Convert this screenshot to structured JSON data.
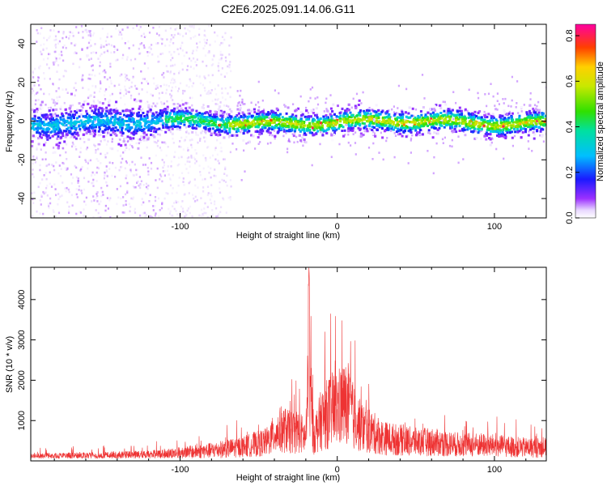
{
  "title": "C2E6.2025.091.14.06.G11",
  "colors": {
    "snr_line": "#ee3333",
    "axis": "#000000",
    "background": "#ffffff"
  },
  "chart_data": [
    {
      "type": "heatmap",
      "xlabel": "Height of straight line (km)",
      "ylabel": "Frequency (Hz)",
      "xlim": [
        -195,
        133
      ],
      "ylim": [
        -50,
        50
      ],
      "x_ticks": [
        -100,
        0,
        100
      ],
      "y_ticks": [
        -40,
        -20,
        0,
        20,
        40
      ],
      "colorbar": {
        "label": "Normalized spectral amplitude",
        "range": [
          0,
          0.85
        ],
        "ticks": [
          0.0,
          0.2,
          0.4,
          0.6,
          0.8
        ],
        "colormap": "rainbow (violet to red)"
      },
      "ridge": {
        "center_hz": 0,
        "description_values": "Narrow band of high amplitude centered near 0 Hz across heights; broad scattered low-amplitude noise at heights below about -70 km"
      }
    },
    {
      "type": "line",
      "xlabel": "Height of straight line (km)",
      "ylabel": "SNR (10 * v/v)",
      "xlim": [
        -195,
        133
      ],
      "ylim": [
        0,
        4800
      ],
      "x_ticks": [
        -100,
        0,
        100
      ],
      "y_ticks": [
        1000,
        2000,
        3000,
        4000
      ],
      "series": [
        {
          "x": [
            -195,
            -180,
            -160,
            -140,
            -120,
            -100,
            -80,
            -60,
            -45,
            -40,
            -35,
            -30,
            -25,
            -20,
            -18,
            -15,
            -10,
            -5,
            0,
            5,
            10,
            15,
            20,
            30,
            40,
            50,
            60,
            70,
            80,
            90,
            100,
            110,
            120,
            133
          ],
          "y": [
            250,
            250,
            260,
            280,
            330,
            420,
            550,
            750,
            1000,
            1400,
            1700,
            1500,
            1600,
            1200,
            4800,
            1300,
            2200,
            2600,
            2800,
            3000,
            2400,
            1800,
            1600,
            1200,
            1100,
            1000,
            1000,
            900,
            850,
            850,
            800,
            750,
            700,
            700
          ]
        }
      ]
    }
  ]
}
